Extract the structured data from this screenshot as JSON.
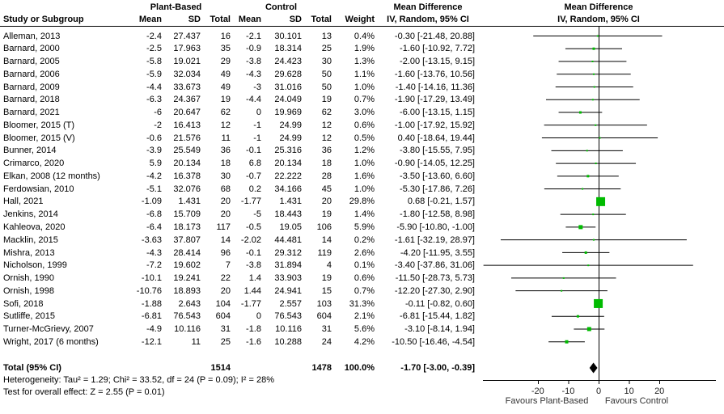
{
  "colors": {
    "marker_green": "#00BB00",
    "line_black": "#000000"
  },
  "header": {
    "group1": "Plant-Based",
    "group2": "Control",
    "col_study": "Study or Subgroup",
    "col_mean": "Mean",
    "col_sd": "SD",
    "col_total": "Total",
    "col_weight": "Weight",
    "md_title": "Mean Difference",
    "md_sub": "IV, Random, 95% CI"
  },
  "footnotes": {
    "heterogeneity": "Heterogeneity: Tau² = 1.29; Chi² = 33.52, df = 24 (P = 0.09); I² = 28%",
    "overall_effect": "Test for overall effect: Z = 2.55 (P = 0.01)"
  },
  "axis": {
    "favours_left": "Favours Plant-Based",
    "favours_right": "Favours Control"
  },
  "chart_data": {
    "type": "scatter",
    "subtype": "forest-plot",
    "title": "Mean Difference",
    "effect_model": "IV, Random, 95% CI",
    "xticks": [
      -20,
      -10,
      0,
      10,
      20
    ],
    "xlim": [
      -38,
      39
    ],
    "xlabel_left": "Favours Plant-Based",
    "xlabel_right": "Favours Control",
    "studies": [
      {
        "label": "Alleman, 2013",
        "pb_mean": "-2.4",
        "pb_sd": "27.437",
        "pb_total": "16",
        "c_mean": "-2.1",
        "c_sd": "30.101",
        "c_total": "13",
        "weight_text": "0.4%",
        "ci_text": "-0.30 [-21.48, 20.88]",
        "md": -0.3,
        "ci_low": -21.48,
        "ci_high": 20.88,
        "weight": 0.4
      },
      {
        "label": "Barnard, 2000",
        "pb_mean": "-2.5",
        "pb_sd": "17.963",
        "pb_total": "35",
        "c_mean": "-0.9",
        "c_sd": "18.314",
        "c_total": "25",
        "weight_text": "1.9%",
        "ci_text": "-1.60 [-10.92, 7.72]",
        "md": -1.6,
        "ci_low": -10.92,
        "ci_high": 7.72,
        "weight": 1.9
      },
      {
        "label": "Barnard, 2005",
        "pb_mean": "-5.8",
        "pb_sd": "19.021",
        "pb_total": "29",
        "c_mean": "-3.8",
        "c_sd": "24.423",
        "c_total": "30",
        "weight_text": "1.3%",
        "ci_text": "-2.00 [-13.15, 9.15]",
        "md": -2.0,
        "ci_low": -13.15,
        "ci_high": 9.15,
        "weight": 1.3
      },
      {
        "label": "Barnard, 2006",
        "pb_mean": "-5.9",
        "pb_sd": "32.034",
        "pb_total": "49",
        "c_mean": "-4.3",
        "c_sd": "29.628",
        "c_total": "50",
        "weight_text": "1.1%",
        "ci_text": "-1.60 [-13.76, 10.56]",
        "md": -1.6,
        "ci_low": -13.76,
        "ci_high": 10.56,
        "weight": 1.1
      },
      {
        "label": "Barnard, 2009",
        "pb_mean": "-4.4",
        "pb_sd": "33.673",
        "pb_total": "49",
        "c_mean": "-3",
        "c_sd": "31.016",
        "c_total": "50",
        "weight_text": "1.0%",
        "ci_text": "-1.40 [-14.16, 11.36]",
        "md": -1.4,
        "ci_low": -14.16,
        "ci_high": 11.36,
        "weight": 1.0
      },
      {
        "label": "Barnard, 2018",
        "pb_mean": "-6.3",
        "pb_sd": "24.367",
        "pb_total": "19",
        "c_mean": "-4.4",
        "c_sd": "24.049",
        "c_total": "19",
        "weight_text": "0.7%",
        "ci_text": "-1.90 [-17.29, 13.49]",
        "md": -1.9,
        "ci_low": -17.29,
        "ci_high": 13.49,
        "weight": 0.7
      },
      {
        "label": "Barnard, 2021",
        "pb_mean": "-6",
        "pb_sd": "20.647",
        "pb_total": "62",
        "c_mean": "0",
        "c_sd": "19.969",
        "c_total": "62",
        "weight_text": "3.0%",
        "ci_text": "-6.00 [-13.15, 1.15]",
        "md": -6.0,
        "ci_low": -13.15,
        "ci_high": 1.15,
        "weight": 3.0
      },
      {
        "label": "Bloomer, 2015 (T)",
        "pb_mean": "-2",
        "pb_sd": "16.413",
        "pb_total": "12",
        "c_mean": "-1",
        "c_sd": "24.99",
        "c_total": "12",
        "weight_text": "0.6%",
        "ci_text": "-1.00 [-17.92, 15.92]",
        "md": -1.0,
        "ci_low": -17.92,
        "ci_high": 15.92,
        "weight": 0.6
      },
      {
        "label": "Bloomer, 2015 (V)",
        "pb_mean": "-0.6",
        "pb_sd": "21.576",
        "pb_total": "11",
        "c_mean": "-1",
        "c_sd": "24.99",
        "c_total": "12",
        "weight_text": "0.5%",
        "ci_text": "0.40 [-18.64, 19.44]",
        "md": 0.4,
        "ci_low": -18.64,
        "ci_high": 19.44,
        "weight": 0.5
      },
      {
        "label": "Bunner, 2014",
        "pb_mean": "-3.9",
        "pb_sd": "25.549",
        "pb_total": "36",
        "c_mean": "-0.1",
        "c_sd": "25.316",
        "c_total": "36",
        "weight_text": "1.2%",
        "ci_text": "-3.80 [-15.55, 7.95]",
        "md": -3.8,
        "ci_low": -15.55,
        "ci_high": 7.95,
        "weight": 1.2
      },
      {
        "label": "Crimarco, 2020",
        "pb_mean": "5.9",
        "pb_sd": "20.134",
        "pb_total": "18",
        "c_mean": "6.8",
        "c_sd": "20.134",
        "c_total": "18",
        "weight_text": "1.0%",
        "ci_text": "-0.90 [-14.05, 12.25]",
        "md": -0.9,
        "ci_low": -14.05,
        "ci_high": 12.25,
        "weight": 1.0
      },
      {
        "label": "Elkan, 2008 (12 months)",
        "pb_mean": "-4.2",
        "pb_sd": "16.378",
        "pb_total": "30",
        "c_mean": "-0.7",
        "c_sd": "22.222",
        "c_total": "28",
        "weight_text": "1.6%",
        "ci_text": "-3.50 [-13.60, 6.60]",
        "md": -3.5,
        "ci_low": -13.6,
        "ci_high": 6.6,
        "weight": 1.6
      },
      {
        "label": "Ferdowsian, 2010",
        "pb_mean": "-5.1",
        "pb_sd": "32.076",
        "pb_total": "68",
        "c_mean": "0.2",
        "c_sd": "34.166",
        "c_total": "45",
        "weight_text": "1.0%",
        "ci_text": "-5.30 [-17.86, 7.26]",
        "md": -5.3,
        "ci_low": -17.86,
        "ci_high": 7.26,
        "weight": 1.0
      },
      {
        "label": "Hall, 2021",
        "pb_mean": "-1.09",
        "pb_sd": "1.431",
        "pb_total": "20",
        "c_mean": "-1.77",
        "c_sd": "1.431",
        "c_total": "20",
        "weight_text": "29.8%",
        "ci_text": "0.68 [-0.21, 1.57]",
        "md": 0.68,
        "ci_low": -0.21,
        "ci_high": 1.57,
        "weight": 29.8
      },
      {
        "label": "Jenkins, 2014",
        "pb_mean": "-6.8",
        "pb_sd": "15.709",
        "pb_total": "20",
        "c_mean": "-5",
        "c_sd": "18.443",
        "c_total": "19",
        "weight_text": "1.4%",
        "ci_text": "-1.80 [-12.58, 8.98]",
        "md": -1.8,
        "ci_low": -12.58,
        "ci_high": 8.98,
        "weight": 1.4
      },
      {
        "label": "Kahleova, 2020",
        "pb_mean": "-6.4",
        "pb_sd": "18.173",
        "pb_total": "117",
        "c_mean": "-0.5",
        "c_sd": "19.05",
        "c_total": "106",
        "weight_text": "5.9%",
        "ci_text": "-5.90 [-10.80, -1.00]",
        "md": -5.9,
        "ci_low": -10.8,
        "ci_high": -1.0,
        "weight": 5.9
      },
      {
        "label": "Macklin, 2015",
        "pb_mean": "-3.63",
        "pb_sd": "37.807",
        "pb_total": "14",
        "c_mean": "-2.02",
        "c_sd": "44.481",
        "c_total": "14",
        "weight_text": "0.2%",
        "ci_text": "-1.61 [-32.19, 28.97]",
        "md": -1.61,
        "ci_low": -32.19,
        "ci_high": 28.97,
        "weight": 0.2
      },
      {
        "label": "Mishra, 2013",
        "pb_mean": "-4.3",
        "pb_sd": "28.414",
        "pb_total": "96",
        "c_mean": "-0.1",
        "c_sd": "29.312",
        "c_total": "119",
        "weight_text": "2.6%",
        "ci_text": "-4.20 [-11.95, 3.55]",
        "md": -4.2,
        "ci_low": -11.95,
        "ci_high": 3.55,
        "weight": 2.6
      },
      {
        "label": "Nicholson, 1999",
        "pb_mean": "-7.2",
        "pb_sd": "19.602",
        "pb_total": "7",
        "c_mean": "-3.8",
        "c_sd": "31.894",
        "c_total": "4",
        "weight_text": "0.1%",
        "ci_text": "-3.40 [-37.86, 31.06]",
        "md": -3.4,
        "ci_low": -37.86,
        "ci_high": 31.06,
        "weight": 0.1
      },
      {
        "label": "Ornish, 1990",
        "pb_mean": "-10.1",
        "pb_sd": "19.241",
        "pb_total": "22",
        "c_mean": "1.4",
        "c_sd": "33.903",
        "c_total": "19",
        "weight_text": "0.6%",
        "ci_text": "-11.50 [-28.73, 5.73]",
        "md": -11.5,
        "ci_low": -28.73,
        "ci_high": 5.73,
        "weight": 0.6
      },
      {
        "label": "Ornish, 1998",
        "pb_mean": "-10.76",
        "pb_sd": "18.893",
        "pb_total": "20",
        "c_mean": "1.44",
        "c_sd": "24.941",
        "c_total": "15",
        "weight_text": "0.7%",
        "ci_text": "-12.20 [-27.30, 2.90]",
        "md": -12.2,
        "ci_low": -27.3,
        "ci_high": 2.9,
        "weight": 0.7
      },
      {
        "label": "Sofi, 2018",
        "pb_mean": "-1.88",
        "pb_sd": "2.643",
        "pb_total": "104",
        "c_mean": "-1.77",
        "c_sd": "2.557",
        "c_total": "103",
        "weight_text": "31.3%",
        "ci_text": "-0.11 [-0.82, 0.60]",
        "md": -0.11,
        "ci_low": -0.82,
        "ci_high": 0.6,
        "weight": 31.3
      },
      {
        "label": "Sutliffe, 2015",
        "pb_mean": "-6.81",
        "pb_sd": "76.543",
        "pb_total": "604",
        "c_mean": "0",
        "c_sd": "76.543",
        "c_total": "604",
        "weight_text": "2.1%",
        "ci_text": "-6.81 [-15.44, 1.82]",
        "md": -6.81,
        "ci_low": -15.44,
        "ci_high": 1.82,
        "weight": 2.1
      },
      {
        "label": "Turner-McGrievy, 2007",
        "pb_mean": "-4.9",
        "pb_sd": "10.116",
        "pb_total": "31",
        "c_mean": "-1.8",
        "c_sd": "10.116",
        "c_total": "31",
        "weight_text": "5.6%",
        "ci_text": "-3.10 [-8.14, 1.94]",
        "md": -3.1,
        "ci_low": -8.14,
        "ci_high": 1.94,
        "weight": 5.6
      },
      {
        "label": "Wright, 2017 (6 months)",
        "pb_mean": "-12.1",
        "pb_sd": "11",
        "pb_total": "25",
        "c_mean": "-1.6",
        "c_sd": "10.288",
        "c_total": "24",
        "weight_text": "4.2%",
        "ci_text": "-10.50 [-16.46, -4.54]",
        "md": -10.5,
        "ci_low": -16.46,
        "ci_high": -4.54,
        "weight": 4.2
      }
    ],
    "total": {
      "label": "Total (95% CI)",
      "pb_total": "1514",
      "c_total": "1478",
      "weight_text": "100.0%",
      "ci_text": "-1.70 [-3.00, -0.39]",
      "md": -1.7,
      "ci_low": -3.0,
      "ci_high": -0.39
    }
  }
}
